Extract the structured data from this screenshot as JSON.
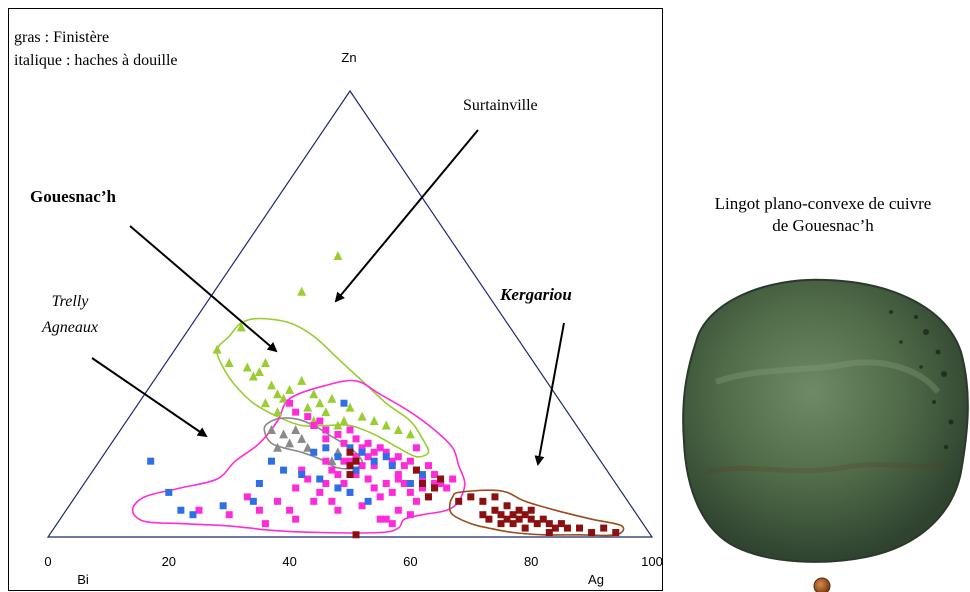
{
  "legend_text": {
    "line1": "gras : Finistère",
    "line2": "italique : haches à douille"
  },
  "ternary_labels": {
    "top": "Zn",
    "bottom_left": "Bi",
    "bottom_right": "Ag"
  },
  "annotations": {
    "surtainville": "Surtainville",
    "gouesnach": "Gouesnac’h",
    "trelly_line1": "Trelly",
    "trelly_line2": "Agneaux",
    "kergariou": "Kergariou"
  },
  "ingot": {
    "caption_line1": "Lingot plano-convexe de cuivre",
    "caption_line2": "de Gouesnac’h"
  },
  "colors": {
    "triangle": "#1f2a6e",
    "lime": "#9acd32",
    "gray": "#8a8a8a",
    "magenta": "#ff2bd9",
    "blue": "#2f6fe6",
    "maroon": "#8b1010",
    "brown_outline": "#9b4a1a"
  },
  "chart_data": {
    "type": "scatter",
    "x_ticks": [
      "0",
      "20",
      "40",
      "60",
      "80",
      "100"
    ],
    "xlim": [
      0,
      100
    ],
    "ylim": [
      0,
      100
    ],
    "series": [
      {
        "marker": "triangle",
        "color": "#9acd32",
        "points": [
          [
            48,
            63
          ],
          [
            42,
            55
          ],
          [
            32,
            47
          ],
          [
            28,
            42
          ],
          [
            30,
            39
          ],
          [
            33,
            38
          ],
          [
            35,
            37
          ],
          [
            36,
            39
          ],
          [
            34,
            36
          ],
          [
            37,
            34
          ],
          [
            38,
            32
          ],
          [
            40,
            33
          ],
          [
            42,
            35
          ],
          [
            44,
            32
          ],
          [
            45,
            30
          ],
          [
            47,
            31
          ],
          [
            43,
            29
          ],
          [
            39,
            31
          ],
          [
            36,
            30
          ],
          [
            38,
            28
          ],
          [
            46,
            28
          ],
          [
            50,
            29
          ],
          [
            49,
            26
          ],
          [
            52,
            27
          ],
          [
            54,
            26
          ],
          [
            56,
            25
          ],
          [
            58,
            24
          ],
          [
            60,
            23
          ],
          [
            48,
            25
          ],
          [
            44,
            26
          ]
        ]
      },
      {
        "marker": "triangle",
        "color": "#8a8a8a",
        "points": [
          [
            37,
            24
          ],
          [
            39,
            23
          ],
          [
            41,
            24
          ],
          [
            40,
            21
          ],
          [
            42,
            22
          ],
          [
            43,
            20
          ],
          [
            38,
            20
          ],
          [
            48,
            19
          ],
          [
            47,
            17
          ]
        ]
      },
      {
        "marker": "square",
        "color": "#ff2bd9",
        "points": [
          [
            40,
            30
          ],
          [
            41,
            28
          ],
          [
            43,
            27
          ],
          [
            44,
            25
          ],
          [
            45,
            26
          ],
          [
            46,
            24
          ],
          [
            46,
            22
          ],
          [
            48,
            23
          ],
          [
            49,
            21
          ],
          [
            50,
            24
          ],
          [
            51,
            22
          ],
          [
            52,
            20
          ],
          [
            53,
            18
          ],
          [
            54,
            19
          ],
          [
            55,
            20
          ],
          [
            56,
            19
          ],
          [
            57,
            17
          ],
          [
            58,
            18
          ],
          [
            59,
            16
          ],
          [
            60,
            17
          ],
          [
            61,
            15
          ],
          [
            62,
            13
          ],
          [
            63,
            16
          ],
          [
            64,
            14
          ],
          [
            65,
            12
          ],
          [
            66,
            11
          ],
          [
            67,
            13
          ],
          [
            46,
            17
          ],
          [
            47,
            15
          ],
          [
            48,
            14
          ],
          [
            49,
            12
          ],
          [
            50,
            10
          ],
          [
            51,
            14
          ],
          [
            52,
            16
          ],
          [
            53,
            13
          ],
          [
            54,
            11
          ],
          [
            55,
            9
          ],
          [
            56,
            12
          ],
          [
            57,
            10
          ],
          [
            58,
            14
          ],
          [
            59,
            12
          ],
          [
            60,
            10
          ],
          [
            61,
            8
          ],
          [
            62,
            11
          ],
          [
            63,
            9
          ],
          [
            64,
            12
          ],
          [
            45,
            10
          ],
          [
            44,
            8
          ],
          [
            43,
            13
          ],
          [
            42,
            15
          ],
          [
            41,
            11
          ],
          [
            47,
            8
          ],
          [
            48,
            6
          ],
          [
            40,
            6
          ],
          [
            38,
            8
          ],
          [
            35,
            6
          ],
          [
            33,
            9
          ],
          [
            30,
            5
          ],
          [
            25,
            6
          ],
          [
            36,
            3
          ],
          [
            41,
            4
          ],
          [
            55,
            4
          ],
          [
            56,
            4
          ],
          [
            57,
            3
          ],
          [
            58,
            6
          ],
          [
            60,
            5
          ],
          [
            52,
            7
          ],
          [
            50,
            17
          ],
          [
            53,
            21
          ],
          [
            49,
            17
          ],
          [
            46,
            12
          ],
          [
            54,
            16
          ],
          [
            58,
            13
          ],
          [
            61,
            20
          ],
          [
            51,
            18
          ]
        ]
      },
      {
        "marker": "square",
        "color": "#2f6fe6",
        "points": [
          [
            17,
            17
          ],
          [
            20,
            10
          ],
          [
            37,
            17
          ],
          [
            39,
            15
          ],
          [
            42,
            14
          ],
          [
            45,
            13
          ],
          [
            44,
            19
          ],
          [
            46,
            20
          ],
          [
            48,
            18
          ],
          [
            50,
            20
          ],
          [
            52,
            19
          ],
          [
            54,
            17
          ],
          [
            56,
            18
          ],
          [
            34,
            8
          ],
          [
            29,
            7
          ],
          [
            22,
            6
          ],
          [
            24,
            5
          ],
          [
            49,
            30
          ],
          [
            60,
            12
          ],
          [
            62,
            14
          ],
          [
            64,
            11
          ],
          [
            57,
            16
          ],
          [
            53,
            8
          ],
          [
            50,
            10
          ],
          [
            35,
            12
          ],
          [
            51,
            15
          ],
          [
            48,
            11
          ]
        ]
      },
      {
        "marker": "square",
        "color": "#8b1010",
        "points": [
          [
            50,
            14
          ],
          [
            50,
            16
          ],
          [
            51,
            17
          ],
          [
            50,
            19
          ],
          [
            61,
            15
          ],
          [
            62,
            12
          ],
          [
            64,
            11
          ],
          [
            63,
            9
          ],
          [
            65,
            13
          ],
          [
            68,
            8
          ],
          [
            70,
            9
          ],
          [
            72,
            8
          ],
          [
            74,
            9
          ],
          [
            72,
            5
          ],
          [
            73,
            4
          ],
          [
            74,
            6
          ],
          [
            75,
            5
          ],
          [
            76,
            4
          ],
          [
            77,
            5
          ],
          [
            78,
            6
          ],
          [
            79,
            5
          ],
          [
            80,
            4
          ],
          [
            81,
            3
          ],
          [
            82,
            4
          ],
          [
            83,
            3
          ],
          [
            84,
            2
          ],
          [
            85,
            3
          ],
          [
            86,
            2
          ],
          [
            88,
            2
          ],
          [
            90,
            1
          ],
          [
            92,
            2
          ],
          [
            94,
            1
          ],
          [
            77,
            3
          ],
          [
            79,
            2
          ],
          [
            83,
            1
          ],
          [
            78,
            4
          ],
          [
            80,
            6
          ],
          [
            76,
            7
          ],
          [
            75,
            3
          ],
          [
            51,
            0.5
          ]
        ]
      }
    ],
    "regions": [
      {
        "name": "Surtainville",
        "color": "#9acd32",
        "points": [
          [
            28,
            42
          ],
          [
            30,
            45
          ],
          [
            32,
            48
          ],
          [
            35,
            49
          ],
          [
            40,
            48
          ],
          [
            44,
            45
          ],
          [
            48,
            40
          ],
          [
            52,
            35
          ],
          [
            56,
            30
          ],
          [
            60,
            26
          ],
          [
            62,
            22
          ],
          [
            63,
            19
          ],
          [
            61,
            18
          ],
          [
            58,
            20
          ],
          [
            54,
            23
          ],
          [
            50,
            25
          ],
          [
            46,
            25
          ],
          [
            42,
            25
          ],
          [
            38,
            27
          ],
          [
            34,
            30
          ],
          [
            31,
            34
          ],
          [
            29,
            38
          ]
        ]
      },
      {
        "name": "Gouesnac’h",
        "color": "#8a8a8a",
        "points": [
          [
            36,
            25
          ],
          [
            38,
            26.5
          ],
          [
            41,
            26.5
          ],
          [
            44,
            25
          ],
          [
            47,
            22.5
          ],
          [
            50,
            20
          ],
          [
            52,
            17
          ],
          [
            51,
            15.5
          ],
          [
            48,
            15.5
          ],
          [
            45,
            17.5
          ],
          [
            42,
            19
          ],
          [
            39,
            20
          ],
          [
            37,
            21
          ],
          [
            36,
            23
          ]
        ]
      },
      {
        "name": "Trelly Agneaux",
        "color": "#ff2bd9",
        "points": [
          [
            40,
            31
          ],
          [
            46,
            34
          ],
          [
            51,
            35
          ],
          [
            55,
            32
          ],
          [
            60,
            28
          ],
          [
            64,
            24
          ],
          [
            67,
            20
          ],
          [
            68,
            16
          ],
          [
            69,
            12
          ],
          [
            68,
            8
          ],
          [
            66,
            6
          ],
          [
            62,
            5
          ],
          [
            59,
            4
          ],
          [
            58,
            2
          ],
          [
            55,
            1
          ],
          [
            45,
            1
          ],
          [
            37,
            1.5
          ],
          [
            30,
            2.5
          ],
          [
            22,
            3
          ],
          [
            16,
            3.5
          ],
          [
            14,
            6
          ],
          [
            16,
            9
          ],
          [
            22,
            11
          ],
          [
            28,
            13
          ],
          [
            31,
            17
          ],
          [
            35,
            21
          ],
          [
            38,
            26
          ]
        ]
      },
      {
        "name": "Kergariou",
        "color": "#9b4a1a",
        "points": [
          [
            67,
            9
          ],
          [
            68,
            10
          ],
          [
            73,
            10.5
          ],
          [
            76,
            10
          ],
          [
            79,
            8
          ],
          [
            84,
            6
          ],
          [
            90,
            4
          ],
          [
            95,
            2.5
          ],
          [
            94,
            0.5
          ],
          [
            88,
            0.5
          ],
          [
            82,
            0.5
          ],
          [
            77,
            1
          ],
          [
            73,
            2
          ],
          [
            70,
            3
          ],
          [
            67,
            5
          ],
          [
            66.5,
            7
          ]
        ]
      }
    ]
  }
}
